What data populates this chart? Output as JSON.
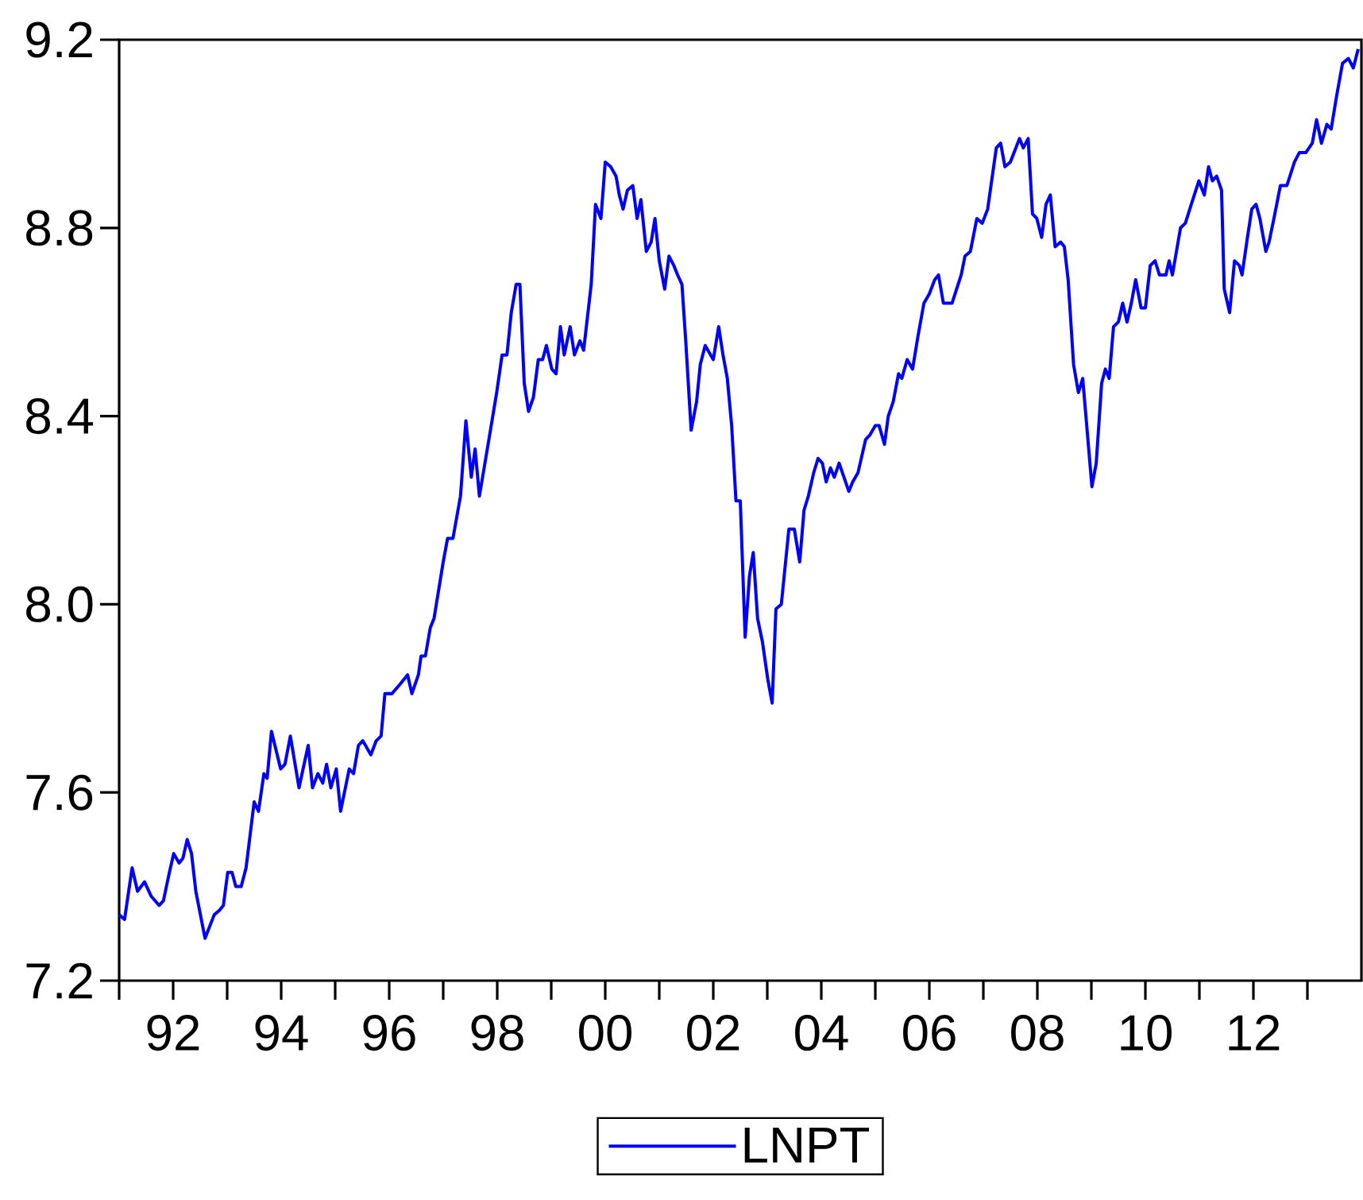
{
  "chart_data": {
    "type": "line",
    "x": [
      1991.0,
      1991.1,
      1991.24,
      1991.34,
      1991.47,
      1991.59,
      1991.74,
      1991.82,
      1991.93,
      1992.01,
      1992.11,
      1992.18,
      1992.26,
      1992.34,
      1992.42,
      1992.59,
      1992.76,
      1992.86,
      1992.93,
      1993.01,
      1993.09,
      1993.16,
      1993.26,
      1993.35,
      1993.5,
      1993.58,
      1993.68,
      1993.74,
      1993.82,
      1993.99,
      1994.07,
      1994.17,
      1994.33,
      1994.5,
      1994.58,
      1994.68,
      1994.77,
      1994.84,
      1994.92,
      1995.02,
      1995.1,
      1995.26,
      1995.34,
      1995.43,
      1995.51,
      1995.66,
      1995.76,
      1995.85,
      1995.92,
      1996.05,
      1996.2,
      1996.34,
      1996.42,
      1996.54,
      1996.59,
      1996.67,
      1996.76,
      1996.83,
      1997.0,
      1997.08,
      1997.18,
      1997.32,
      1997.42,
      1997.52,
      1997.59,
      1997.67,
      1997.86,
      1997.99,
      1998.09,
      1998.18,
      1998.26,
      1998.35,
      1998.42,
      1998.5,
      1998.58,
      1998.67,
      1998.76,
      1998.84,
      1998.91,
      1999.01,
      1999.09,
      1999.17,
      1999.24,
      1999.35,
      1999.43,
      1999.53,
      1999.6,
      1999.68,
      1999.74,
      1999.82,
      1999.92,
      2000.0,
      2000.1,
      2000.2,
      2000.26,
      2000.33,
      2000.41,
      2000.51,
      2000.59,
      2000.66,
      2000.76,
      2000.85,
      2000.92,
      2001.0,
      2001.1,
      2001.18,
      2001.27,
      2001.34,
      2001.42,
      2001.49,
      2001.59,
      2001.69,
      2001.76,
      2001.85,
      2002.0,
      2002.1,
      2002.18,
      2002.26,
      2002.34,
      2002.42,
      2002.5,
      2002.59,
      2002.67,
      2002.74,
      2002.82,
      2002.91,
      2003.01,
      2003.09,
      2003.16,
      2003.26,
      2003.4,
      2003.5,
      2003.6,
      2003.68,
      2003.76,
      2003.86,
      2003.94,
      2004.02,
      2004.09,
      2004.17,
      2004.24,
      2004.33,
      2004.51,
      2004.58,
      2004.68,
      2004.82,
      2004.9,
      2005.0,
      2005.07,
      2005.17,
      2005.24,
      2005.33,
      2005.43,
      2005.49,
      2005.59,
      2005.69,
      2005.79,
      2005.9,
      2006.0,
      2006.1,
      2006.17,
      2006.26,
      2006.42,
      2006.59,
      2006.66,
      2006.76,
      2006.88,
      2006.98,
      2007.08,
      2007.24,
      2007.32,
      2007.4,
      2007.5,
      2007.67,
      2007.74,
      2007.83,
      2007.91,
      2007.99,
      2008.08,
      2008.16,
      2008.24,
      2008.33,
      2008.43,
      2008.5,
      2008.57,
      2008.67,
      2008.76,
      2008.84,
      2009.01,
      2009.09,
      2009.19,
      2009.26,
      2009.33,
      2009.41,
      2009.5,
      2009.58,
      2009.66,
      2009.74,
      2009.82,
      2009.92,
      2010.0,
      2010.09,
      2010.18,
      2010.26,
      2010.38,
      2010.44,
      2010.5,
      2010.65,
      2010.74,
      2010.85,
      2010.99,
      2011.09,
      2011.17,
      2011.24,
      2011.32,
      2011.41,
      2011.46,
      2011.56,
      2011.65,
      2011.74,
      2011.79,
      2011.89,
      2011.97,
      2012.05,
      2012.12,
      2012.23,
      2012.29,
      2012.38,
      2012.5,
      2012.62,
      2012.76,
      2012.85,
      2012.97,
      2013.09,
      2013.17,
      2013.26,
      2013.36,
      2013.44,
      2013.54,
      2013.65,
      2013.76,
      2013.85,
      2013.94
    ],
    "series": [
      {
        "name": "LNPT",
        "color": "#0000ff",
        "values": [
          7.34,
          7.33,
          7.44,
          7.39,
          7.41,
          7.38,
          7.36,
          7.37,
          7.43,
          7.47,
          7.45,
          7.46,
          7.5,
          7.47,
          7.39,
          7.29,
          7.34,
          7.35,
          7.36,
          7.43,
          7.43,
          7.4,
          7.4,
          7.44,
          7.58,
          7.56,
          7.64,
          7.63,
          7.73,
          7.65,
          7.66,
          7.72,
          7.61,
          7.7,
          7.61,
          7.64,
          7.62,
          7.66,
          7.61,
          7.65,
          7.56,
          7.65,
          7.64,
          7.7,
          7.71,
          7.68,
          7.71,
          7.72,
          7.81,
          7.81,
          7.83,
          7.85,
          7.81,
          7.85,
          7.89,
          7.89,
          7.95,
          7.97,
          8.09,
          8.14,
          8.14,
          8.23,
          8.39,
          8.27,
          8.33,
          8.23,
          8.36,
          8.45,
          8.53,
          8.53,
          8.62,
          8.68,
          8.68,
          8.47,
          8.41,
          8.44,
          8.52,
          8.52,
          8.55,
          8.5,
          8.49,
          8.59,
          8.53,
          8.59,
          8.53,
          8.56,
          8.54,
          8.62,
          8.68,
          8.85,
          8.82,
          8.94,
          8.93,
          8.91,
          8.87,
          8.84,
          8.88,
          8.89,
          8.82,
          8.86,
          8.75,
          8.77,
          8.82,
          8.73,
          8.67,
          8.74,
          8.72,
          8.7,
          8.68,
          8.56,
          8.37,
          8.43,
          8.51,
          8.55,
          8.52,
          8.59,
          8.53,
          8.48,
          8.38,
          8.22,
          8.22,
          7.93,
          8.06,
          8.11,
          7.97,
          7.92,
          7.84,
          7.79,
          7.99,
          8.0,
          8.16,
          8.16,
          8.09,
          8.2,
          8.23,
          8.28,
          8.31,
          8.3,
          8.26,
          8.29,
          8.27,
          8.3,
          8.24,
          8.26,
          8.28,
          8.35,
          8.36,
          8.38,
          8.38,
          8.34,
          8.4,
          8.43,
          8.49,
          8.48,
          8.52,
          8.5,
          8.57,
          8.64,
          8.66,
          8.69,
          8.7,
          8.64,
          8.64,
          8.7,
          8.74,
          8.75,
          8.82,
          8.81,
          8.84,
          8.97,
          8.98,
          8.93,
          8.94,
          8.99,
          8.97,
          8.99,
          8.83,
          8.82,
          8.78,
          8.85,
          8.87,
          8.76,
          8.77,
          8.76,
          8.69,
          8.51,
          8.45,
          8.48,
          8.25,
          8.3,
          8.47,
          8.5,
          8.48,
          8.59,
          8.6,
          8.64,
          8.6,
          8.64,
          8.69,
          8.63,
          8.63,
          8.72,
          8.73,
          8.7,
          8.7,
          8.73,
          8.7,
          8.8,
          8.81,
          8.85,
          8.9,
          8.87,
          8.93,
          8.9,
          8.91,
          8.88,
          8.67,
          8.62,
          8.73,
          8.72,
          8.7,
          8.78,
          8.84,
          8.85,
          8.82,
          8.75,
          8.77,
          8.82,
          8.89,
          8.89,
          8.94,
          8.96,
          8.96,
          8.98,
          9.03,
          8.98,
          9.02,
          9.01,
          9.08,
          9.15,
          9.16,
          9.14,
          9.18
        ]
      }
    ],
    "xlim": [
      1991,
      2014
    ],
    "ylim": [
      7.2,
      9.2
    ],
    "xticks": [
      {
        "value": 1991,
        "label": null
      },
      {
        "value": 1992,
        "label": "92"
      },
      {
        "value": 1993,
        "label": null
      },
      {
        "value": 1994,
        "label": "94"
      },
      {
        "value": 1995,
        "label": null
      },
      {
        "value": 1996,
        "label": "96"
      },
      {
        "value": 1997,
        "label": null
      },
      {
        "value": 1998,
        "label": "98"
      },
      {
        "value": 1999,
        "label": null
      },
      {
        "value": 2000,
        "label": "00"
      },
      {
        "value": 2001,
        "label": null
      },
      {
        "value": 2002,
        "label": "02"
      },
      {
        "value": 2003,
        "label": null
      },
      {
        "value": 2004,
        "label": "04"
      },
      {
        "value": 2005,
        "label": null
      },
      {
        "value": 2006,
        "label": "06"
      },
      {
        "value": 2007,
        "label": null
      },
      {
        "value": 2008,
        "label": "08"
      },
      {
        "value": 2009,
        "label": null
      },
      {
        "value": 2010,
        "label": "10"
      },
      {
        "value": 2011,
        "label": null
      },
      {
        "value": 2012,
        "label": "12"
      },
      {
        "value": 2013,
        "label": null
      }
    ],
    "yticks": [
      7.2,
      7.6,
      {
        "value": 8,
        "label": "8.0"
      },
      8.4,
      8.8,
      9.2
    ],
    "legend": "bottom"
  }
}
